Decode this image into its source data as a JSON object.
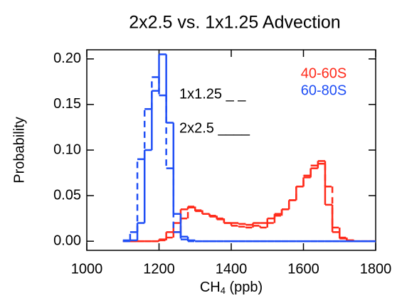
{
  "chart_data": {
    "type": "histogram",
    "title": "2x2.5 vs. 1x1.25 Advection",
    "xlabel": [
      "CH",
      "4",
      " (ppb)"
    ],
    "ylabel": "Probability",
    "annotations": [
      "1x1.25 _ _",
      "2x2.5 ____"
    ],
    "xlim": [
      1000,
      1800
    ],
    "ylim": [
      -0.01,
      0.21
    ],
    "xticks": [
      1000,
      1200,
      1400,
      1600,
      1800
    ],
    "yticks": [
      {
        "value": 0,
        "label": "0.00"
      },
      {
        "value": 0.05,
        "label": "0.05"
      },
      {
        "value": 0.1,
        "label": "0.10"
      },
      {
        "value": 0.15,
        "label": "0.15"
      },
      {
        "value": 0.2,
        "label": "0.20"
      }
    ],
    "bins": [
      1100,
      1120,
      1140,
      1160,
      1180,
      1200,
      1220,
      1240,
      1260,
      1280,
      1300,
      1320,
      1340,
      1360,
      1380,
      1400,
      1420,
      1440,
      1460,
      1480,
      1500,
      1520,
      1540,
      1560,
      1580,
      1600,
      1620,
      1640,
      1660,
      1680,
      1700,
      1720,
      1740,
      1760,
      1780,
      1800
    ],
    "series": [
      {
        "name": "40-60S",
        "color": "#ff2a1a",
        "values": [
          0,
          0,
          0,
          0,
          0,
          0.002,
          0.01,
          0.02,
          0.035,
          0.037,
          0.033,
          0.03,
          0.027,
          0.024,
          0.02,
          0.02,
          0.019,
          0.018,
          0.02,
          0.02,
          0.025,
          0.03,
          0.035,
          0.045,
          0.06,
          0.07,
          0.08,
          0.088,
          0.04,
          0.01,
          0.003,
          0.001,
          0,
          0,
          0
        ],
        "dashed_values": [
          0,
          0,
          0,
          0,
          0,
          0.001,
          0.004,
          0.01,
          0.025,
          0.038,
          0.034,
          0.03,
          0.028,
          0.025,
          0.02,
          0.017,
          0.016,
          0.015,
          0.017,
          0.015,
          0.02,
          0.028,
          0.035,
          0.045,
          0.06,
          0.072,
          0.083,
          0.085,
          0.06,
          0.015,
          0.004,
          0.001,
          0,
          0,
          0
        ]
      },
      {
        "name": "60-80S",
        "color": "#1f4ef5",
        "values": [
          0,
          0.001,
          0.02,
          0.1,
          0.165,
          0.205,
          0.13,
          0.03,
          0.005,
          0.001,
          0,
          0,
          0,
          0,
          0,
          0,
          0,
          0,
          0,
          0,
          0,
          0,
          0,
          0,
          0,
          0,
          0,
          0,
          0,
          0,
          0,
          0,
          0,
          0,
          0
        ],
        "dashed_values": [
          0.001,
          0.01,
          0.09,
          0.145,
          0.18,
          0.16,
          0.08,
          0.01,
          0.002,
          0,
          0,
          0,
          0,
          0,
          0,
          0,
          0,
          0,
          0,
          0,
          0,
          0,
          0,
          0,
          0,
          0,
          0,
          0,
          0,
          0,
          0,
          0,
          0,
          0,
          0
        ]
      }
    ]
  }
}
